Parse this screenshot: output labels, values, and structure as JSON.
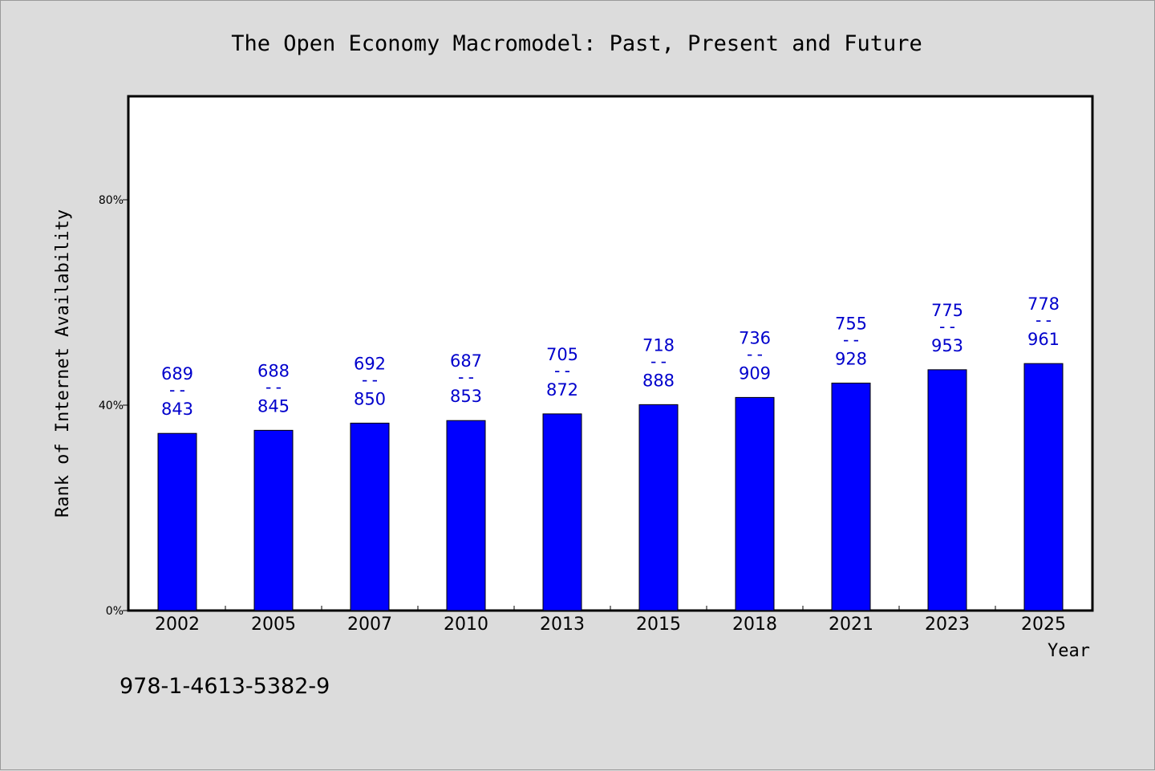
{
  "chart_data": {
    "type": "bar",
    "title": "The Open Economy Macromodel: Past, Present and Future",
    "xlabel": "Year",
    "ylabel": "Rank of Internet Availability",
    "ylim": [
      0,
      100
    ],
    "yticks": [
      {
        "value": 0,
        "label": "0%"
      },
      {
        "value": 40,
        "label": "40%"
      },
      {
        "value": 80,
        "label": "80%"
      }
    ],
    "categories": [
      "2002",
      "2005",
      "2007",
      "2010",
      "2013",
      "2015",
      "2018",
      "2021",
      "2023",
      "2025"
    ],
    "values": [
      34.5,
      35.1,
      36.5,
      37.0,
      38.3,
      40.1,
      41.5,
      44.3,
      46.9,
      48.1
    ],
    "label_top": [
      "689",
      "688",
      "692",
      "687",
      "705",
      "718",
      "736",
      "755",
      "775",
      "778"
    ],
    "label_sep": "--",
    "label_bottom": [
      "843",
      "845",
      "850",
      "853",
      "872",
      "888",
      "909",
      "928",
      "953",
      "961"
    ],
    "bar_color": "#0000ff",
    "label_color": "#0000cc",
    "grid": false
  },
  "footer_text": "978-1-4613-5382-9"
}
